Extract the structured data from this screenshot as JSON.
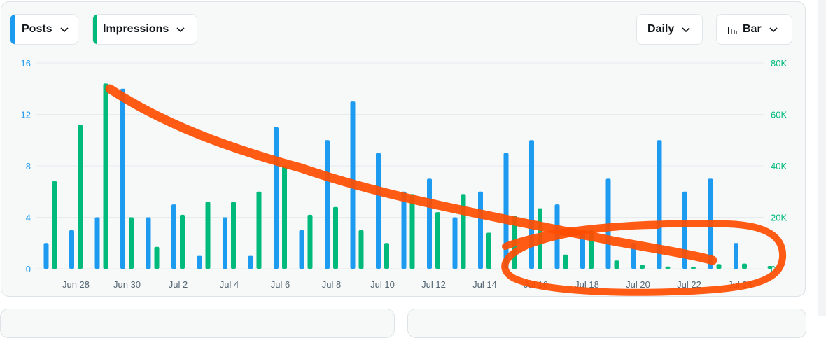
{
  "controls": {
    "metric_primary": "Posts",
    "metric_secondary": "Impressions",
    "interval": "Daily",
    "chart_type": "Bar"
  },
  "colors": {
    "posts": "#1d9bf0",
    "impressions": "#00ba7c",
    "annotation": "#ff4d00"
  },
  "icons": {
    "dropdown": "chevron-down-icon",
    "chart_type": "bar-chart-icon"
  },
  "chart_data": {
    "type": "bar",
    "categories": [
      "Jun 27",
      "Jun 28",
      "Jun 29",
      "Jun 30",
      "Jul 1",
      "Jul 2",
      "Jul 3",
      "Jul 4",
      "Jul 5",
      "Jul 6",
      "Jul 7",
      "Jul 8",
      "Jul 9",
      "Jul 10",
      "Jul 11",
      "Jul 12",
      "Jul 13",
      "Jul 14",
      "Jul 15",
      "Jul 16",
      "Jul 17",
      "Jul 18",
      "Jul 19",
      "Jul 20",
      "Jul 21",
      "Jul 22",
      "Jul 23",
      "Jul 24",
      "Jul 25"
    ],
    "x_tick_labels": [
      "Jun 28",
      "Jun 30",
      "Jul 2",
      "Jul 4",
      "Jul 6",
      "Jul 8",
      "Jul 10",
      "Jul 12",
      "Jul 14",
      "Jul 16",
      "Jul 18",
      "Jul 20",
      "Jul 22",
      "Jul 24"
    ],
    "series": [
      {
        "name": "Posts",
        "axis": "left",
        "values": [
          2,
          3,
          4,
          14,
          4,
          5,
          1,
          4,
          1,
          11,
          3,
          10,
          13,
          9,
          6,
          7,
          4,
          6,
          9,
          10,
          5,
          3,
          7,
          2,
          10,
          6,
          7,
          2,
          0
        ]
      },
      {
        "name": "Impressions",
        "axis": "right",
        "values": [
          34000,
          56000,
          72000,
          20000,
          8500,
          21000,
          26000,
          26000,
          30000,
          40000,
          21000,
          24000,
          15000,
          10000,
          29000,
          22000,
          29000,
          14000,
          20500,
          23500,
          5500,
          15000,
          3200,
          1600,
          900,
          600,
          1800,
          2000,
          1100
        ]
      }
    ],
    "y_left": {
      "ticks": [
        "0",
        "4",
        "8",
        "12",
        "16"
      ],
      "ylim": [
        0,
        16
      ]
    },
    "y_right": {
      "ticks": [
        "0",
        "20K",
        "40K",
        "60K",
        "80K"
      ],
      "ylim": [
        0,
        80000
      ]
    },
    "grid": true,
    "legend": "none"
  }
}
